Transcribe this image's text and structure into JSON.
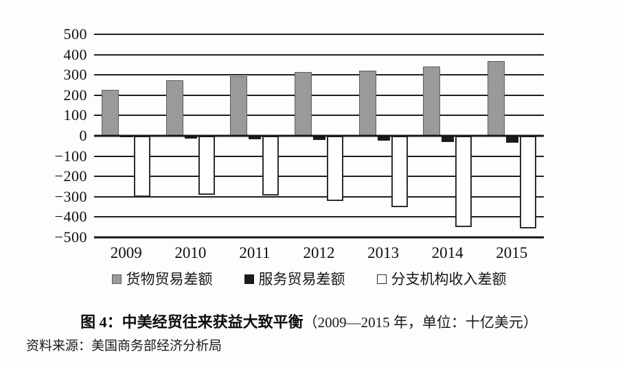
{
  "chart_data": {
    "type": "bar",
    "title": "图 4：中美经贸往来获益大致平衡（2009—2015 年，单位：十亿美元）",
    "xlabel": "",
    "ylabel": "",
    "unit": "十亿美元",
    "categories": [
      "2009",
      "2010",
      "2011",
      "2012",
      "2013",
      "2014",
      "2015"
    ],
    "series": [
      {
        "key": "goods",
        "name": "货物贸易差额",
        "color": "#9a9a9a",
        "border": "#5c5c5c",
        "border_width": 1,
        "values": [
          227,
          273,
          295,
          315,
          322,
          343,
          367
        ]
      },
      {
        "key": "services",
        "name": "服务贸易差额",
        "color": "#1b1b1b",
        "border": "#1b1b1b",
        "border_width": 1,
        "values": [
          -8,
          -12,
          -16,
          -20,
          -24,
          -30,
          -35
        ]
      },
      {
        "key": "branch-income",
        "name": "分支机构收入差额",
        "color": "#ffffff",
        "border": "#2b2b2b",
        "border_width": 2,
        "values": [
          -300,
          -290,
          -295,
          -320,
          -350,
          -450,
          -455
        ]
      }
    ],
    "ylim": [
      -500,
      500
    ],
    "ytick_step": 100,
    "yticks": [
      500,
      400,
      300,
      200,
      100,
      0,
      -100,
      -200,
      -300,
      -400,
      -500
    ],
    "grid": true,
    "legend_position": "bottom"
  },
  "figure": {
    "title_main": "图 4：中美经贸往来获益大致平衡",
    "title_paren": "（2009—2015 年，单位：十亿美元）",
    "source": "资料来源：美国商务部经济分析局"
  }
}
